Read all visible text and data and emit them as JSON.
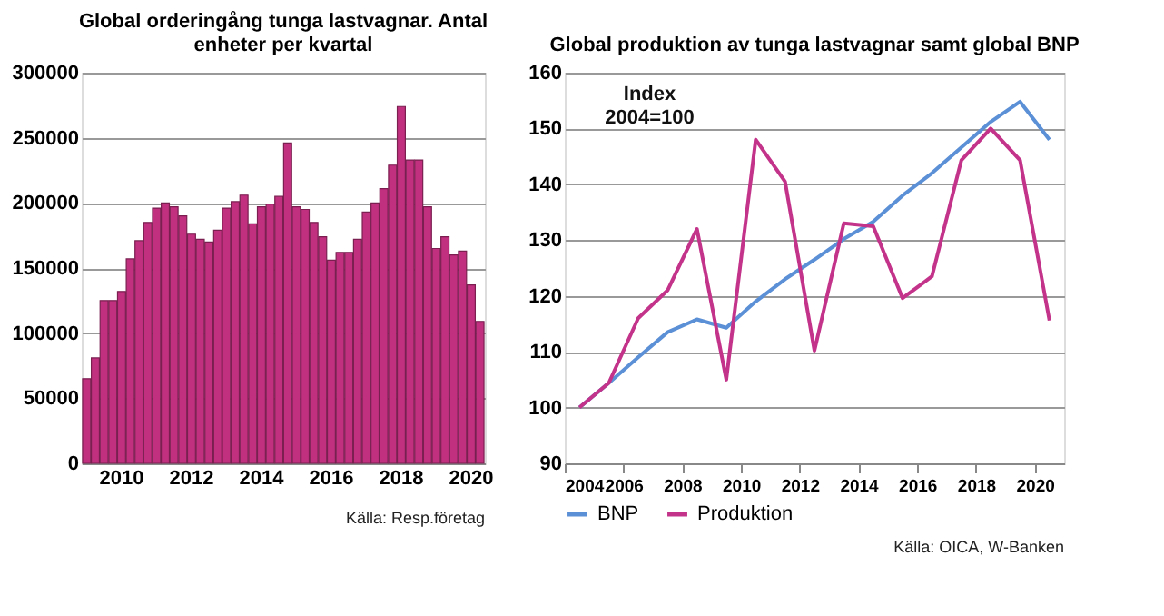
{
  "chart_data": [
    {
      "type": "bar",
      "title": "Global orderingång tunga lastvagnar. Antal enheter per kvartal",
      "categories": [
        null,
        null,
        null,
        null,
        "2010",
        null,
        null,
        null,
        null,
        null,
        null,
        null,
        "2012",
        null,
        null,
        null,
        null,
        null,
        null,
        null,
        "2014",
        null,
        null,
        null,
        null,
        null,
        null,
        null,
        "2016",
        null,
        null,
        null,
        null,
        null,
        null,
        null,
        "2018",
        null,
        null,
        null,
        null,
        null,
        null,
        null,
        "2020",
        null
      ],
      "values": [
        65000,
        81000,
        125000,
        125000,
        132000,
        157000,
        171000,
        185000,
        196000,
        200000,
        197000,
        190000,
        176000,
        172000,
        170000,
        179000,
        196000,
        201000,
        206000,
        184000,
        197000,
        199000,
        205000,
        246000,
        197000,
        195000,
        185000,
        174000,
        156000,
        162000,
        162000,
        172000,
        193000,
        200000,
        211000,
        229000,
        274000,
        233000,
        233000,
        197000,
        165000,
        174000,
        160000,
        163000,
        137000,
        109000
      ],
      "color": "#c0307f",
      "ylim": [
        0,
        300000
      ],
      "yticks": [
        0,
        50000,
        100000,
        150000,
        200000,
        250000,
        300000
      ],
      "grid": "y",
      "annotations": [
        "Källa: Resp.företag"
      ]
    },
    {
      "type": "line",
      "title": "Global produktion av tunga lastvagnar samt global BNP",
      "x": [
        2004.5,
        2005.5,
        2006.5,
        2007.5,
        2008.5,
        2009.5,
        2010.5,
        2011.5,
        2012.5,
        2013.5,
        2014.5,
        2015.5,
        2016.5,
        2017.5,
        2018.5,
        2019.5,
        2020.5
      ],
      "series": [
        {
          "name": "BNP",
          "color": "#5b8fd6",
          "values": [
            100,
            104.4,
            109,
            113.5,
            115.8,
            114.3,
            119,
            123,
            126.5,
            130.2,
            133.3,
            138,
            142,
            146.6,
            151.2,
            154.8,
            148
          ]
        },
        {
          "name": "Produktion",
          "color": "#c3338a",
          "values": [
            100,
            104.4,
            116,
            121,
            132,
            105,
            148,
            140.5,
            110.2,
            133,
            132.5,
            119.6,
            123.5,
            144.3,
            150,
            144.3,
            115.6
          ]
        }
      ],
      "xlim": [
        2004,
        2021
      ],
      "xticks": [
        2004,
        2006,
        2008,
        2010,
        2012,
        2014,
        2016,
        2018,
        2020
      ],
      "ylim": [
        90,
        160
      ],
      "yticks": [
        90,
        100,
        110,
        120,
        130,
        140,
        150,
        160
      ],
      "grid": "y",
      "legend": "bottom",
      "marker": "none",
      "line_style": "solid",
      "annotations": [
        "Index\n2004=100",
        "Källa: OICA, W-Banken"
      ]
    }
  ]
}
